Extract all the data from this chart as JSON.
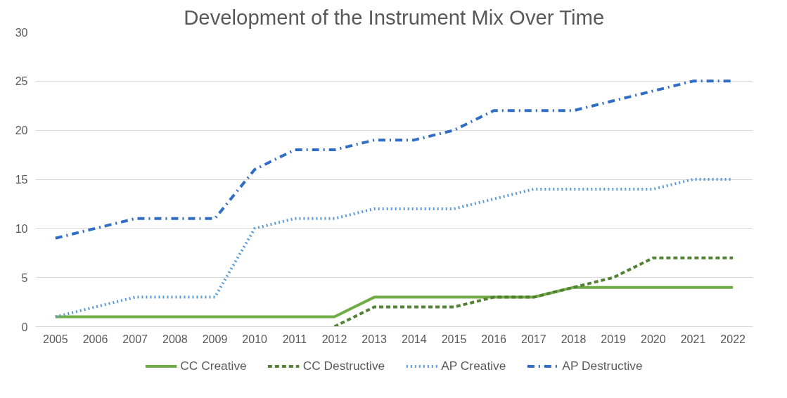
{
  "chart_data": {
    "type": "line",
    "title": "Development of the Instrument Mix Over Time",
    "categories": [
      "2005",
      "2006",
      "2007",
      "2008",
      "2009",
      "2010",
      "2011",
      "2012",
      "2013",
      "2014",
      "2015",
      "2016",
      "2017",
      "2018",
      "2019",
      "2020",
      "2021",
      "2022"
    ],
    "series": [
      {
        "name": "CC Creative",
        "color": "#70ad47",
        "line_style": "solid",
        "values": [
          1,
          1,
          1,
          1,
          1,
          1,
          1,
          1,
          3,
          3,
          3,
          3,
          3,
          4,
          4,
          4,
          4,
          4
        ]
      },
      {
        "name": "CC Destructive",
        "color": "#548235",
        "line_style": "dashed",
        "values": [
          null,
          null,
          null,
          null,
          null,
          null,
          null,
          0,
          2,
          2,
          2,
          3,
          3,
          4,
          5,
          7,
          7,
          7
        ]
      },
      {
        "name": "AP Creative",
        "color": "#5b9bd5",
        "line_style": "dotted",
        "values": [
          1,
          2,
          3,
          3,
          3,
          10,
          11,
          11,
          12,
          12,
          12,
          13,
          14,
          14,
          14,
          14,
          15,
          15
        ]
      },
      {
        "name": "AP Destructive",
        "color": "#2f6ec4",
        "line_style": "dashdot",
        "values": [
          9,
          10,
          11,
          11,
          11,
          16,
          18,
          18,
          19,
          19,
          20,
          22,
          22,
          22,
          23,
          24,
          25,
          25
        ]
      }
    ],
    "ylim": [
      0,
      30
    ],
    "yticks": [
      0,
      5,
      10,
      15,
      20,
      25,
      30
    ],
    "grid": "y",
    "legend": "bottom"
  }
}
